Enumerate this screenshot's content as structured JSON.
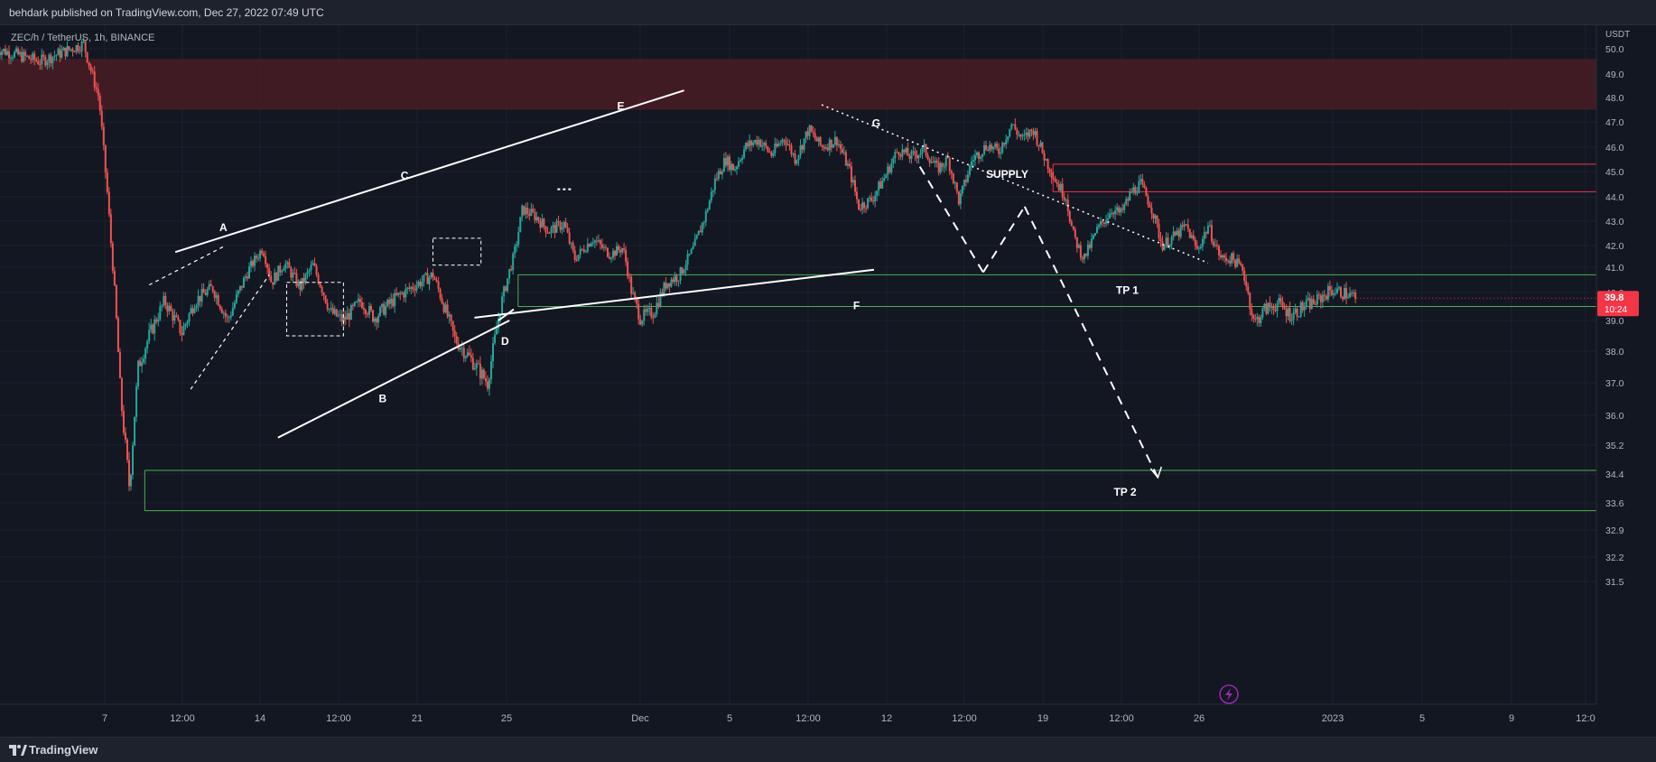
{
  "publish_info": "behdark published on TradingView.com, Dec 27, 2022 07:49 UTC",
  "brand": "TradingView",
  "colors": {
    "background": "#131722",
    "up": "#26a69a",
    "down": "#ef5350",
    "zone_red": "#f23645",
    "zone_green": "#4caf50",
    "drawing": "#ffffff",
    "price_tag": "#f23645"
  },
  "chart_data": {
    "type": "candlestick",
    "symbol_label": "ZEC/h / TetherUS, 1h, BINANCE",
    "y_unit": "USDT",
    "y_ticks": [
      50.0,
      49.0,
      48.0,
      47.0,
      46.0,
      45.0,
      44.0,
      43.0,
      42.0,
      41.0,
      40.0,
      39.0,
      38.0,
      37.0,
      36.0,
      35.2,
      34.4,
      33.6,
      32.9,
      32.2,
      31.5
    ],
    "y_tick_labels": [
      "50.0",
      "49.0",
      "48.0",
      "47.0",
      "46.0",
      "45.0",
      "44.0",
      "43.0",
      "42.0",
      "41.0",
      "40.0",
      "39.0",
      "38.0",
      "37.0",
      "36.0",
      "35.2",
      "34.4",
      "33.6",
      "32.9",
      "32.2",
      "31.5"
    ],
    "x_ticks": [
      "7",
      "12:00",
      "14",
      "12:00",
      "21",
      "25",
      "Dec",
      "5",
      "12:00",
      "12",
      "12:00",
      "19",
      "12:00",
      "26",
      "2023",
      "5",
      "9",
      "12:0"
    ],
    "last_price": "39.8",
    "countdown": "10:24",
    "price_path": [
      [
        -0.5,
        50.0
      ],
      [
        1.5,
        49.5
      ],
      [
        3.5,
        50.2
      ],
      [
        4.2,
        48.0
      ],
      [
        4.6,
        44.0
      ],
      [
        5.2,
        36.5
      ],
      [
        5.6,
        34.0
      ],
      [
        6.0,
        37.5
      ],
      [
        6.5,
        38.5
      ],
      [
        7.2,
        39.7
      ],
      [
        8.0,
        38.6
      ],
      [
        8.6,
        39.7
      ],
      [
        9.4,
        40.2
      ],
      [
        10.1,
        39.0
      ],
      [
        11.0,
        40.8
      ],
      [
        11.7,
        41.9
      ],
      [
        12.1,
        40.4
      ],
      [
        12.7,
        41.2
      ],
      [
        13.4,
        40.2
      ],
      [
        14.0,
        41.1
      ],
      [
        14.8,
        39.3
      ],
      [
        15.4,
        39.0
      ],
      [
        16.2,
        39.7
      ],
      [
        16.8,
        39.1
      ],
      [
        17.8,
        39.8
      ],
      [
        18.7,
        40.3
      ],
      [
        19.5,
        40.7
      ],
      [
        20.1,
        39.3
      ],
      [
        20.5,
        38.4
      ],
      [
        21.4,
        37.6
      ],
      [
        22.0,
        37.0
      ],
      [
        22.6,
        39.5
      ],
      [
        23.2,
        41.5
      ],
      [
        23.6,
        43.5
      ],
      [
        24.2,
        43.2
      ],
      [
        24.8,
        42.6
      ],
      [
        25.5,
        42.9
      ],
      [
        26.0,
        41.4
      ],
      [
        26.8,
        42.3
      ],
      [
        27.6,
        41.6
      ],
      [
        28.2,
        41.9
      ],
      [
        28.6,
        40.0
      ],
      [
        29.0,
        39.1
      ],
      [
        29.6,
        39.3
      ],
      [
        30.2,
        40.4
      ],
      [
        30.8,
        40.7
      ],
      [
        31.4,
        41.8
      ],
      [
        32.0,
        43.3
      ],
      [
        32.4,
        44.6
      ],
      [
        32.9,
        45.5
      ],
      [
        33.3,
        45.1
      ],
      [
        33.8,
        46.0
      ],
      [
        34.4,
        46.3
      ],
      [
        35.0,
        45.7
      ],
      [
        35.6,
        46.4
      ],
      [
        36.1,
        45.5
      ],
      [
        36.7,
        46.7
      ],
      [
        37.3,
        46.0
      ],
      [
        38.0,
        46.3
      ],
      [
        38.6,
        45.0
      ],
      [
        39.0,
        43.6
      ],
      [
        39.6,
        43.9
      ],
      [
        40.2,
        44.8
      ],
      [
        40.8,
        45.9
      ],
      [
        41.4,
        45.6
      ],
      [
        42.0,
        45.9
      ],
      [
        42.6,
        45.1
      ],
      [
        43.1,
        45.5
      ],
      [
        43.6,
        43.8
      ],
      [
        44.2,
        45.5
      ],
      [
        44.9,
        46.1
      ],
      [
        45.4,
        45.8
      ],
      [
        46.0,
        46.9
      ],
      [
        46.5,
        46.3
      ],
      [
        47.0,
        46.7
      ],
      [
        47.5,
        45.6
      ],
      [
        48.1,
        44.5
      ],
      [
        48.5,
        44.0
      ],
      [
        48.8,
        42.5
      ],
      [
        49.3,
        41.4
      ],
      [
        49.9,
        42.6
      ],
      [
        50.6,
        43.5
      ],
      [
        51.0,
        43.3
      ],
      [
        51.5,
        44.2
      ],
      [
        51.9,
        44.5
      ],
      [
        52.4,
        43.6
      ],
      [
        52.9,
        42.0
      ],
      [
        53.5,
        42.4
      ],
      [
        54.0,
        42.8
      ],
      [
        54.5,
        41.8
      ],
      [
        55.0,
        42.8
      ],
      [
        55.6,
        41.4
      ],
      [
        56.1,
        41.4
      ],
      [
        56.6,
        40.9
      ],
      [
        57.1,
        38.9
      ],
      [
        57.6,
        39.4
      ],
      [
        58.2,
        39.6
      ],
      [
        58.8,
        39.2
      ],
      [
        59.4,
        39.5
      ],
      [
        60.0,
        39.7
      ],
      [
        60.6,
        40.1
      ],
      [
        61.2,
        40.0
      ],
      [
        61.8,
        39.8
      ]
    ],
    "zones": [
      {
        "kind": "resistance",
        "from": 47.5,
        "to": 49.6,
        "color": "#f23645"
      },
      {
        "kind": "supply",
        "label": "SUPPLY",
        "from": 44.2,
        "to": 45.3,
        "color": "#f23645"
      },
      {
        "kind": "support",
        "label": "TP 1",
        "from": 39.5,
        "to": 40.7,
        "color": "#4caf50"
      },
      {
        "kind": "support",
        "label": "TP 2",
        "from": 33.4,
        "to": 34.5,
        "color": "#4caf50"
      }
    ],
    "pattern_labels": [
      "A",
      "B",
      "C",
      "D",
      "E",
      "F",
      "G"
    ],
    "annotation_labels": [
      "SUPPLY",
      "TP 1",
      "TP 2"
    ]
  }
}
